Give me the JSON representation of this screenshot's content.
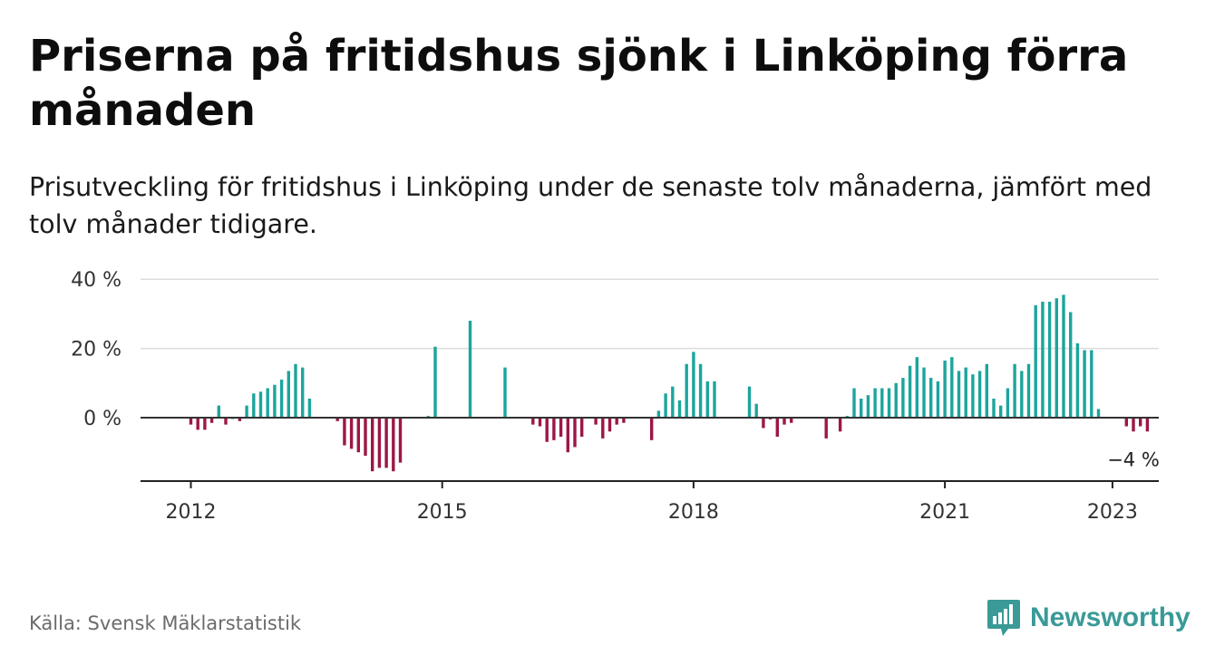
{
  "title": "Priserna på fritidshus sjönk i Linköping förra månaden",
  "subtitle": "Prisutveckling för fritidshus i Linköping under de senaste tolv månaderna, jämfört med tolv månader tidigare.",
  "source": "Källa: Svensk Mäklarstatistik",
  "brand": "Newsworthy",
  "colors": {
    "positive": "#1ca59d",
    "negative": "#9c1747",
    "brand": "#3a9a97"
  },
  "chart_data": {
    "type": "bar",
    "unit": "%",
    "ylim": [
      -18,
      40
    ],
    "yticks": [
      {
        "value": 0,
        "label": "0 %"
      },
      {
        "value": 20,
        "label": "20 %"
      },
      {
        "value": 40,
        "label": "40 %"
      }
    ],
    "xticks": [
      {
        "value": "2012-01",
        "label": "2012"
      },
      {
        "value": "2015-01",
        "label": "2015"
      },
      {
        "value": "2018-01",
        "label": "2018"
      },
      {
        "value": "2021-01",
        "label": "2021"
      },
      {
        "value": "2023-01",
        "label": "2023"
      }
    ],
    "grid": true,
    "last_value_label": "−4 %",
    "x_start": "2012-01",
    "values": [
      -2,
      -3.5,
      -3.5,
      -1.5,
      3.5,
      -2,
      0,
      -1,
      3.5,
      7,
      7.5,
      8.5,
      9.5,
      11,
      13.5,
      15.5,
      14.5,
      5.5,
      null,
      null,
      null,
      -1,
      -8,
      -9,
      -10,
      -11,
      -15.5,
      -14.5,
      -14.5,
      -15.5,
      -13,
      null,
      null,
      null,
      0.5,
      20.5,
      null,
      null,
      null,
      null,
      28,
      null,
      null,
      null,
      null,
      14.5,
      null,
      null,
      null,
      -2,
      -2.5,
      -7,
      -6.5,
      -5.5,
      -10,
      -8.5,
      -5.5,
      null,
      -2,
      -6,
      -4,
      -2,
      -1.5,
      null,
      null,
      null,
      -6.5,
      2,
      7,
      9,
      5,
      15.5,
      19,
      15.5,
      10.5,
      10.5,
      null,
      null,
      null,
      null,
      9,
      4,
      -3,
      -0.5,
      -5.5,
      -2,
      -1.5,
      null,
      null,
      null,
      null,
      -6,
      null,
      -4,
      0.5,
      8.5,
      5.5,
      6.5,
      8.5,
      8.5,
      8.5,
      10,
      11.5,
      15,
      17.5,
      14.5,
      11.5,
      10.5,
      16.5,
      17.5,
      13.5,
      14.5,
      12.5,
      13.5,
      15.5,
      5.5,
      3.5,
      8.5,
      15.5,
      13.5,
      15.5,
      32.5,
      33.5,
      33.5,
      34.5,
      35.5,
      30.5,
      21.5,
      19.5,
      19.5,
      2.5,
      null,
      null,
      null,
      -2.5,
      -4,
      -2.5,
      -4
    ]
  }
}
